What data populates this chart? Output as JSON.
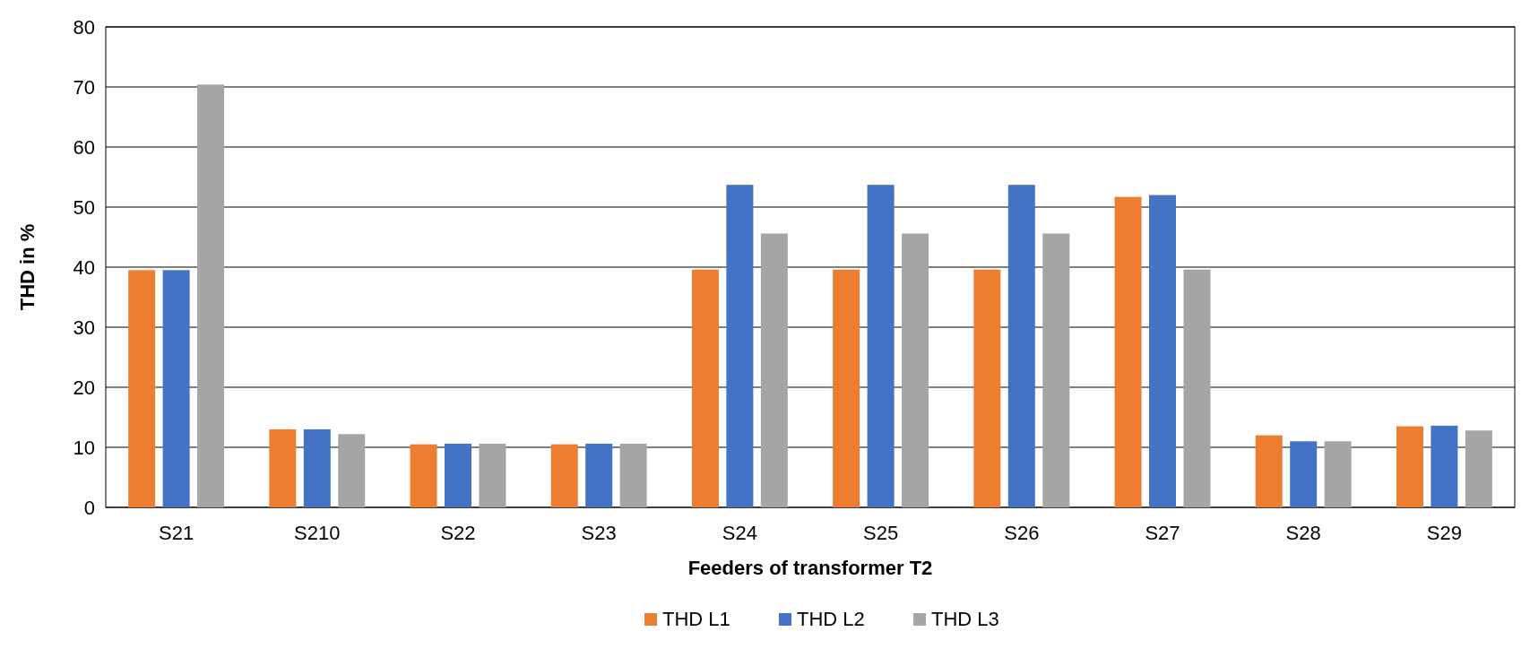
{
  "chart_data": {
    "type": "bar",
    "xlabel": "Feeders of transformer T2",
    "ylabel": "THD in %",
    "categories": [
      "S21",
      "S210",
      "S22",
      "S23",
      "S24",
      "S25",
      "S26",
      "S27",
      "S28",
      "S29"
    ],
    "series": [
      {
        "name": "THD L1",
        "color": "#ed7d31",
        "values": [
          39.5,
          13,
          10.5,
          10.5,
          39.6,
          39.6,
          39.6,
          51.7,
          12,
          13.5
        ]
      },
      {
        "name": "THD L2",
        "color": "#4472c4",
        "values": [
          39.5,
          13,
          10.6,
          10.6,
          53.7,
          53.7,
          53.7,
          52,
          11,
          13.6
        ]
      },
      {
        "name": "THD L3",
        "color": "#a5a5a5",
        "values": [
          70.4,
          12.2,
          10.6,
          10.6,
          45.6,
          45.6,
          45.6,
          39.6,
          11,
          12.8
        ]
      }
    ],
    "ylim": [
      0,
      80
    ],
    "yticks": [
      0,
      10,
      20,
      30,
      40,
      50,
      60,
      70,
      80
    ],
    "grid": "y",
    "legend": "bottom"
  }
}
